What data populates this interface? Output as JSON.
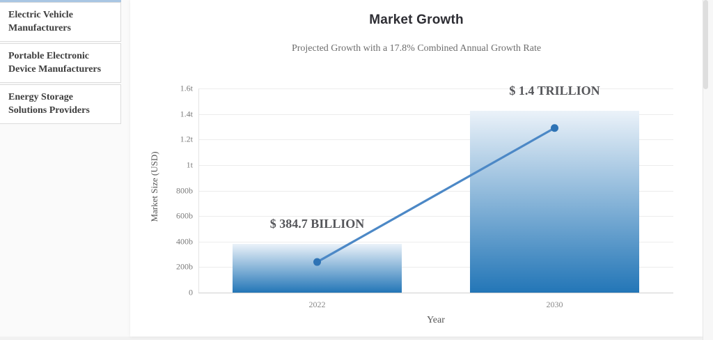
{
  "sidebar": {
    "accent_color": "#a9c6e3",
    "items": [
      {
        "label": "Electric Vehicle Manufacturers"
      },
      {
        "label": "Portable Electronic Device Manufacturers"
      },
      {
        "label": "Energy Storage Solutions Providers"
      }
    ]
  },
  "chart_data": {
    "type": "bar",
    "title": "Market Growth",
    "subtitle": "Projected Growth with a 17.8% Combined Annual Growth Rate",
    "xlabel": "Year",
    "ylabel": "Market Size (USD)",
    "categories": [
      "2022",
      "2030"
    ],
    "series": [
      {
        "name": "market-size-bar",
        "type": "bar",
        "values_billions": [
          384.7,
          1423
        ]
      },
      {
        "name": "growth-trend-line",
        "type": "line",
        "values_billions": [
          240,
          1290
        ]
      }
    ],
    "annotations": [
      {
        "text": "$ 384.7 BILLION",
        "category": "2022"
      },
      {
        "text": "$ 1.4 TRILLION",
        "category": "2030"
      }
    ],
    "ylim_billions": [
      0,
      1600
    ],
    "yticks": [
      {
        "value": 0,
        "label": "0"
      },
      {
        "value": 200,
        "label": "200b"
      },
      {
        "value": 400,
        "label": "400b"
      },
      {
        "value": 600,
        "label": "600b"
      },
      {
        "value": 800,
        "label": "800b"
      },
      {
        "value": 1000,
        "label": "1t"
      },
      {
        "value": 1200,
        "label": "1.2t"
      },
      {
        "value": 1400,
        "label": "1.4t"
      },
      {
        "value": 1600,
        "label": "1.6t"
      }
    ],
    "grid": true,
    "legend": "none",
    "colors": {
      "bar_gradient_top": "#ebf2f9",
      "bar_gradient_bottom": "#2376b7",
      "line": "#4c88c6",
      "marker": "#2e73b5",
      "gridline": "#ececec",
      "axis_line": "#cfcfcf",
      "tick_label": "#7b7b7b",
      "annotation": "#55565a"
    }
  }
}
